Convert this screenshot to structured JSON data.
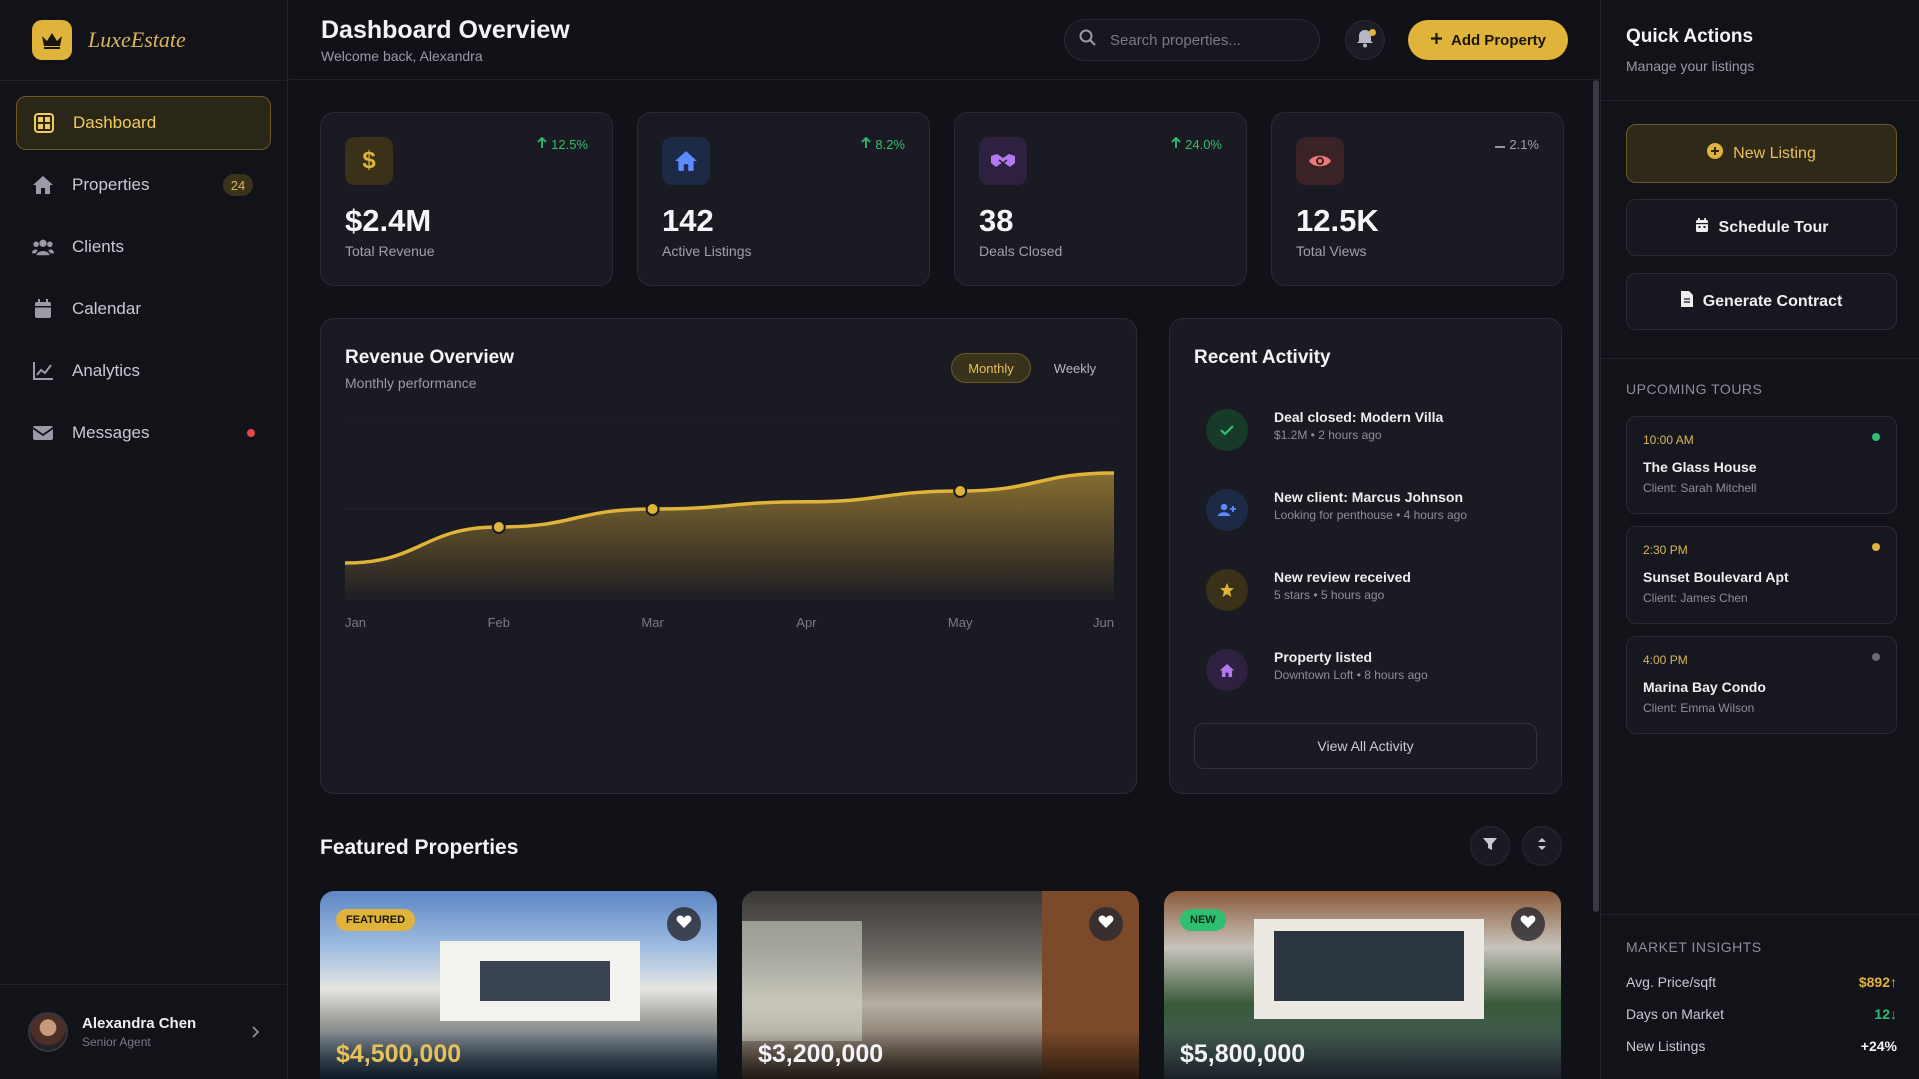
{
  "brand": {
    "name": "LuxeEstate",
    "accent": "#e0b33a"
  },
  "sidebar": {
    "items": [
      {
        "label": "Dashboard",
        "icon": "grid-icon",
        "active": true
      },
      {
        "label": "Properties",
        "icon": "home-icon",
        "badge": "24"
      },
      {
        "label": "Clients",
        "icon": "users-icon"
      },
      {
        "label": "Calendar",
        "icon": "calendar-icon"
      },
      {
        "label": "Analytics",
        "icon": "chart-line-icon"
      },
      {
        "label": "Messages",
        "icon": "envelope-icon",
        "dot": true
      }
    ],
    "user": {
      "name": "Alexandra Chen",
      "role": "Senior Agent"
    }
  },
  "header": {
    "title": "Dashboard Overview",
    "subtitle": "Welcome back, Alexandra",
    "search_placeholder": "Search properties...",
    "add_label": "Add Property"
  },
  "stats": [
    {
      "value": "$2.4M",
      "label": "Total Revenue",
      "trend": "12.5%",
      "direction": "up",
      "icon": "dollar-icon"
    },
    {
      "value": "142",
      "label": "Active Listings",
      "trend": "8.2%",
      "direction": "up",
      "icon": "home-icon"
    },
    {
      "value": "38",
      "label": "Deals Closed",
      "trend": "24.0%",
      "direction": "up",
      "icon": "handshake-icon"
    },
    {
      "value": "12.5K",
      "label": "Total Views",
      "trend": "2.1%",
      "direction": "flat",
      "icon": "eye-icon"
    }
  ],
  "revenue": {
    "title": "Revenue Overview",
    "subtitle": "Monthly performance",
    "toggle": [
      "Monthly",
      "Weekly"
    ],
    "active_toggle": "Monthly"
  },
  "chart_data": {
    "type": "area",
    "title": "Revenue Overview",
    "subtitle": "Monthly performance",
    "categories": [
      "Jan",
      "Feb",
      "Mar",
      "Apr",
      "May",
      "Jun"
    ],
    "series": [
      {
        "values": [
          20,
          40,
          50,
          54,
          60,
          70
        ]
      }
    ],
    "markers": [
      "Feb",
      "Mar",
      "May"
    ],
    "ylim": [
      0,
      100
    ],
    "grid": true,
    "color": "#e0b33a"
  },
  "activity": {
    "title": "Recent Activity",
    "items": [
      {
        "title": "Deal closed: Modern Villa",
        "meta": "$1.2M • 2 hours ago",
        "icon": "check-icon",
        "color": "#2fbf71"
      },
      {
        "title": "New client: Marcus Johnson",
        "meta": "Looking for penthouse • 4 hours ago",
        "icon": "user-plus-icon",
        "color": "#5b8cff"
      },
      {
        "title": "New review received",
        "meta": "5 stars • 5 hours ago",
        "icon": "star-icon",
        "color": "#e0b33a"
      },
      {
        "title": "Property listed",
        "meta": "Downtown Loft • 8 hours ago",
        "icon": "home-icon",
        "color": "#b278f0"
      }
    ],
    "view_all": "View All Activity"
  },
  "featured": {
    "title": "Featured Properties",
    "properties": [
      {
        "price": "$4,500,000",
        "tag": "FEATURED",
        "tag_color": "#e0b33a"
      },
      {
        "price": "$3,200,000",
        "tag": ""
      },
      {
        "price": "$5,800,000",
        "tag": "NEW",
        "tag_color": "#2fbf71"
      }
    ]
  },
  "quick_actions": {
    "title": "Quick Actions",
    "subtitle": "Manage your listings",
    "buttons": [
      {
        "label": "New Listing",
        "icon": "plus-circle-icon"
      },
      {
        "label": "Schedule Tour",
        "icon": "calendar-icon"
      },
      {
        "label": "Generate Contract",
        "icon": "document-icon"
      }
    ]
  },
  "tours": {
    "title": "UPCOMING TOURS",
    "items": [
      {
        "time": "10:00 AM",
        "name": "The Glass House",
        "client": "Client: Sarah Mitchell",
        "status_color": "#2fbf71"
      },
      {
        "time": "2:30 PM",
        "name": "Sunset Boulevard Apt",
        "client": "Client: James Chen",
        "status_color": "#e0b33a"
      },
      {
        "time": "4:00 PM",
        "name": "Marina Bay Condo",
        "client": "Client: Emma Wilson",
        "status_color": "#6a6a78"
      }
    ]
  },
  "market": {
    "title": "MARKET INSIGHTS",
    "rows": [
      {
        "label": "Avg. Price/sqft",
        "value": "$892",
        "arrow": "↑",
        "color": "#e0b33a"
      },
      {
        "label": "Days on Market",
        "value": "12",
        "arrow": "↓",
        "color": "#2fbf71"
      },
      {
        "label": "New Listings",
        "value": "+24%",
        "arrow": "",
        "color": "#f4f4f8"
      }
    ]
  }
}
